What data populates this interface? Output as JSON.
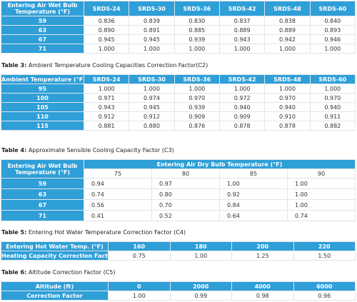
{
  "t2": {
    "corner": "Entering Air Wet Bulb Temperature (°F)",
    "cols": [
      "SRDS-24",
      "SRDS-30",
      "SRDS-36",
      "SRDS-42",
      "SRDS-48",
      "SRDS-60"
    ],
    "rows": [
      {
        "label": "59",
        "vals": [
          "0.836",
          "0.839",
          "0.830",
          "0.837",
          "0.838",
          "0.840"
        ]
      },
      {
        "label": "63",
        "vals": [
          "0.890",
          "0.891",
          "0.885",
          "0.889",
          "0.889",
          "0.893"
        ]
      },
      {
        "label": "67",
        "vals": [
          "0.945",
          "0.945",
          "0.939",
          "0.943",
          "0.942",
          "0.946"
        ]
      },
      {
        "label": "71",
        "vals": [
          "1.000",
          "1.000",
          "1.000",
          "1.000",
          "1.000",
          "1.000"
        ]
      }
    ]
  },
  "t3": {
    "caption_prefix": "Table 3:",
    "caption": "Ambient Temperature Cooling Capacities Correction Factor(C2)",
    "corner": "Ambient Temperature (°F)",
    "cols": [
      "SRDS-24",
      "SRDS-30",
      "SRDS-36",
      "SRDS-42",
      "SRDS-48",
      "SRDS-60"
    ],
    "rows": [
      {
        "label": "95",
        "vals": [
          "1.000",
          "1.000",
          "1.000",
          "1.000",
          "1.000",
          "1.000"
        ]
      },
      {
        "label": "100",
        "vals": [
          "0.971",
          "0.974",
          "0.970",
          "0.972",
          "0.970",
          "0.970"
        ]
      },
      {
        "label": "105",
        "vals": [
          "0.943",
          "0.945",
          "0.939",
          "0.940",
          "0.940",
          "0.940"
        ]
      },
      {
        "label": "110",
        "vals": [
          "0.912",
          "0.912",
          "0.909",
          "0.909",
          "0.910",
          "0.911"
        ]
      },
      {
        "label": "115",
        "vals": [
          "0.881",
          "0.880",
          "0.876",
          "0.878",
          "0.878",
          "0.882"
        ]
      }
    ]
  },
  "t4": {
    "caption_prefix": "Table 4:",
    "caption": "Approximate Sensible Cooling Capacity Factor (C3)",
    "corner": "Entering Air Wet Bulb Temperature (°F)",
    "group": "Entering Air Dry Bulb Temperature (°F)",
    "cols": [
      "75",
      "80",
      "85",
      "90"
    ],
    "rows": [
      {
        "label": "59",
        "vals": [
          "0.94",
          "0.97",
          "1.00",
          "1.00"
        ]
      },
      {
        "label": "63",
        "vals": [
          "0.74",
          "0.80",
          "0.92",
          "1.00"
        ]
      },
      {
        "label": "67",
        "vals": [
          "0.56",
          "0.70",
          "0.84",
          "1.00"
        ]
      },
      {
        "label": "71",
        "vals": [
          "0.41",
          "0.52",
          "0.64",
          "0.74"
        ]
      }
    ]
  },
  "t5": {
    "caption_prefix": "Table 5:",
    "caption": "Entering Hot Water Temperature Correction Factor (C4)",
    "row1_label": "Entering Hot Water Temp. (°F)",
    "row1": [
      "160",
      "180",
      "200",
      "220"
    ],
    "row2_label": "Heating Capacity Correction Factor",
    "row2": [
      "0.75",
      "1.00",
      "1.25",
      "1.50"
    ]
  },
  "t6": {
    "caption_prefix": "Table 6:",
    "caption": "Altitude Correction Factor (C5)",
    "row1_label": "Altitude (ft)",
    "row1": [
      "0",
      "2000",
      "4000",
      "6000"
    ],
    "row2_label": "Correction Factor",
    "row2": [
      "1.00",
      "0.99",
      "0.98",
      "0.96"
    ]
  },
  "colors": {
    "header_blue": "#2f9fd8",
    "border": "#dfe5ea"
  }
}
